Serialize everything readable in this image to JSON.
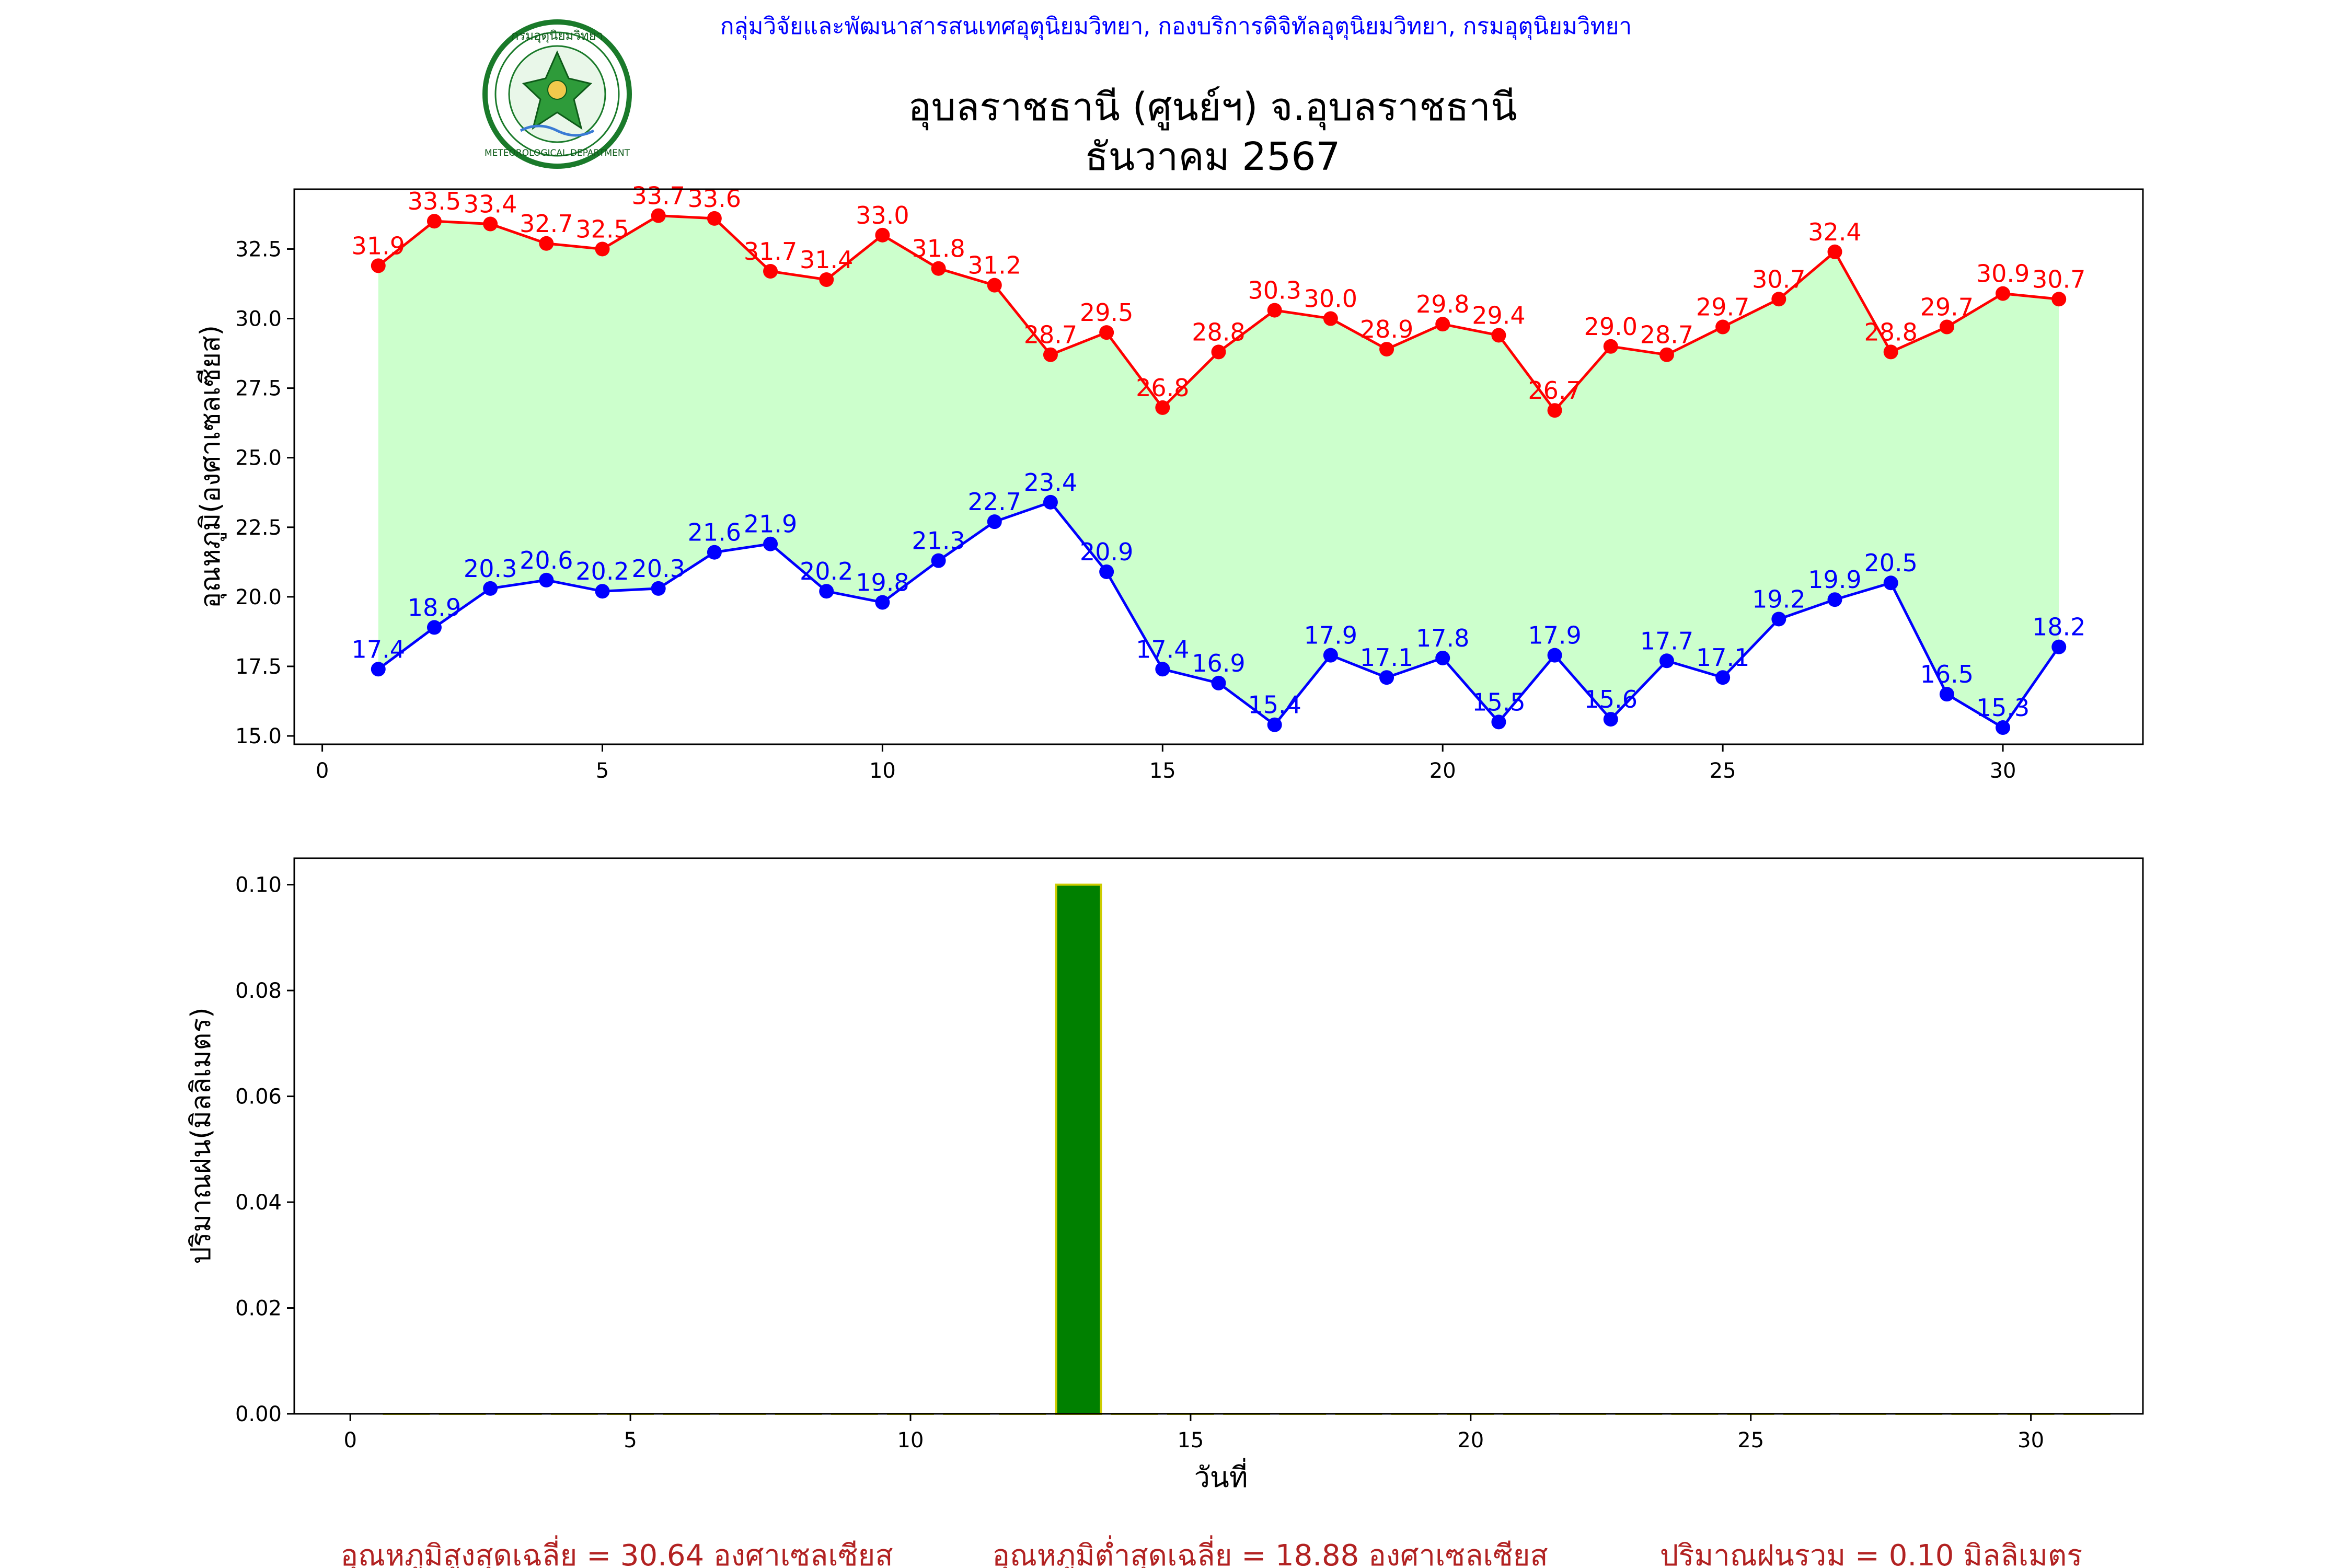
{
  "header": {
    "organization": "กลุ่มวิจัยและพัฒนาสารสนเทศอุตุนิยมวิทยา, กองบริการดิจิทัลอุตุนิยมวิทยา, กรมอุตุนิยมวิทยา",
    "title": "อุบลราชธานี (ศูนย์ฯ) จ.อุบลราชธานี",
    "subtitle": "ธันวาคม 2567",
    "logo_text_top": "กรมอุตุนิยมวิทยา",
    "logo_text_bottom": "METEOROLOGICAL DEPARTMENT"
  },
  "colors": {
    "max_line": "#ff0000",
    "min_line": "#0000ff",
    "fill": "#ccffcc",
    "rain_bar": "#008000",
    "rain_bar_edge": "#cccc00",
    "header_text": "#0000ff",
    "summary_text": "#b22222",
    "logo_green": "#1a7a2a"
  },
  "chart_data": [
    {
      "type": "line",
      "ylabel": "อุณหภูมิ(องศาเซลเซียส)",
      "x": [
        1,
        2,
        3,
        4,
        5,
        6,
        7,
        8,
        9,
        10,
        11,
        12,
        13,
        14,
        15,
        16,
        17,
        18,
        19,
        20,
        21,
        22,
        23,
        24,
        25,
        26,
        27,
        28,
        29,
        30,
        31
      ],
      "series": [
        {
          "values": [
            31.9,
            33.5,
            33.4,
            32.7,
            32.5,
            33.7,
            33.6,
            31.7,
            31.4,
            33.0,
            31.8,
            31.2,
            28.7,
            29.5,
            26.8,
            28.8,
            30.3,
            30.0,
            28.9,
            29.8,
            29.4,
            26.7,
            29.0,
            28.7,
            29.7,
            30.7,
            32.4,
            28.8,
            29.7,
            30.9,
            30.7
          ]
        },
        {
          "values": [
            17.4,
            18.9,
            20.3,
            20.6,
            20.2,
            20.3,
            21.6,
            21.9,
            20.2,
            19.8,
            21.3,
            22.7,
            23.4,
            20.9,
            17.4,
            16.9,
            15.4,
            17.9,
            17.1,
            17.8,
            15.5,
            17.9,
            15.6,
            17.7,
            17.1,
            19.2,
            19.9,
            20.5,
            16.5,
            15.3,
            18.2
          ]
        }
      ],
      "xlim": [
        -0.5,
        32.5
      ],
      "ylim": [
        14.7,
        34.65
      ],
      "xticks": [
        0,
        5,
        10,
        15,
        20,
        25,
        30
      ],
      "yticks": [
        15.0,
        17.5,
        20.0,
        22.5,
        25.0,
        27.5,
        30.0,
        32.5
      ],
      "grid": false
    },
    {
      "type": "bar",
      "xlabel": "วันที่",
      "ylabel": "ปริมาณฝน(มิลลิเมตร)",
      "x": [
        1,
        2,
        3,
        4,
        5,
        6,
        7,
        8,
        9,
        10,
        11,
        12,
        13,
        14,
        15,
        16,
        17,
        18,
        19,
        20,
        21,
        22,
        23,
        24,
        25,
        26,
        27,
        28,
        29,
        30,
        31
      ],
      "values": [
        0,
        0,
        0,
        0,
        0,
        0,
        0,
        0,
        0,
        0,
        0,
        0,
        0.1,
        0,
        0,
        0,
        0,
        0,
        0,
        0,
        0,
        0,
        0,
        0,
        0,
        0,
        0,
        0,
        0,
        0,
        0
      ],
      "xlim": [
        -1,
        32
      ],
      "ylim": [
        0,
        0.105
      ],
      "xticks": [
        0,
        5,
        10,
        15,
        20,
        25,
        30
      ],
      "yticks": [
        0.0,
        0.02,
        0.04,
        0.06,
        0.08,
        0.1
      ],
      "grid": false
    }
  ],
  "summary": {
    "avg_max": "อุณหภูมิสูงสุดเฉลี่ย = 30.64 องศาเซลเซียส",
    "avg_min": "อุณหภูมิต่ำสุดเฉลี่ย = 18.88 องศาเซลเซียส",
    "total_rain": "ปริมาณฝนรวม = 0.10 มิลลิเมตร"
  }
}
